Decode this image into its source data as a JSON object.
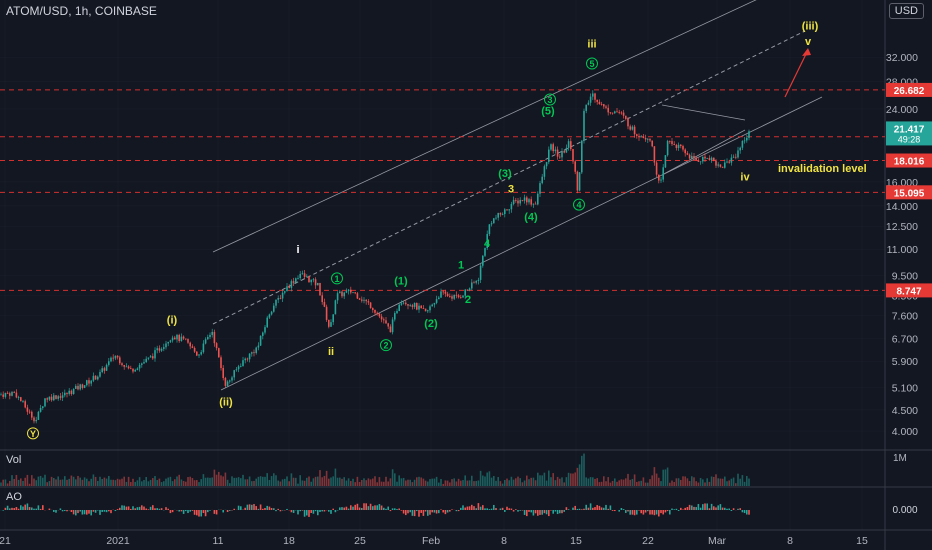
{
  "header": {
    "title": "ATOM/USD, 1h, COINBASE",
    "currency": "USD"
  },
  "panes": {
    "volume": "Vol",
    "ao": "AO"
  },
  "colors": {
    "bg": "#131722",
    "up": "#26a69a",
    "down": "#ef5350",
    "yellow": "#f0e442",
    "green": "#00c853",
    "red_level": "#d32f2f",
    "grid": "#2a2e39",
    "text": "#b2b5be"
  },
  "chart_data": {
    "type": "candlestick",
    "symbol": "ATOM/USD",
    "interval": "1h",
    "exchange": "COINBASE",
    "y_scale": "log",
    "ylim": [
      3.6,
      44
    ],
    "price_ticks": [
      "32.000",
      "28.000",
      "24.000",
      "16.000",
      "14.000",
      "12.500",
      "11.000",
      "9.500",
      "8.500",
      "7.600",
      "6.700",
      "5.900",
      "5.100",
      "4.500",
      "4.000"
    ],
    "x_ticks": [
      "21",
      "2021",
      "11",
      "18",
      "25",
      "Feb",
      "8",
      "15",
      "22",
      "Mar",
      "8",
      "15"
    ],
    "price_series": [
      {
        "t": 0,
        "p": 4.9
      },
      {
        "t": 15,
        "p": 4.95
      },
      {
        "t": 30,
        "p": 4.4
      },
      {
        "t": 36,
        "p": 4.25
      },
      {
        "t": 45,
        "p": 4.8
      },
      {
        "t": 65,
        "p": 4.9
      },
      {
        "t": 85,
        "p": 5.2
      },
      {
        "t": 100,
        "p": 5.5
      },
      {
        "t": 115,
        "p": 6.1
      },
      {
        "t": 130,
        "p": 5.6
      },
      {
        "t": 150,
        "p": 6.0
      },
      {
        "t": 172,
        "p": 6.8
      },
      {
        "t": 185,
        "p": 6.6
      },
      {
        "t": 198,
        "p": 6.1
      },
      {
        "t": 212,
        "p": 7.0
      },
      {
        "t": 220,
        "p": 5.8
      },
      {
        "t": 226,
        "p": 5.15
      },
      {
        "t": 240,
        "p": 5.8
      },
      {
        "t": 258,
        "p": 6.4
      },
      {
        "t": 270,
        "p": 7.8
      },
      {
        "t": 285,
        "p": 8.8
      },
      {
        "t": 300,
        "p": 9.6
      },
      {
        "t": 318,
        "p": 9.0
      },
      {
        "t": 330,
        "p": 7.0
      },
      {
        "t": 336,
        "p": 8.5
      },
      {
        "t": 352,
        "p": 8.7
      },
      {
        "t": 372,
        "p": 8.0
      },
      {
        "t": 390,
        "p": 7.0
      },
      {
        "t": 400,
        "p": 8.3
      },
      {
        "t": 412,
        "p": 8.1
      },
      {
        "t": 426,
        "p": 7.7
      },
      {
        "t": 440,
        "p": 8.6
      },
      {
        "t": 458,
        "p": 8.4
      },
      {
        "t": 470,
        "p": 8.9
      },
      {
        "t": 478,
        "p": 9.3
      },
      {
        "t": 490,
        "p": 12.8
      },
      {
        "t": 505,
        "p": 13.6
      },
      {
        "t": 512,
        "p": 14.2
      },
      {
        "t": 525,
        "p": 14.6
      },
      {
        "t": 535,
        "p": 14.1
      },
      {
        "t": 550,
        "p": 19.5
      },
      {
        "t": 560,
        "p": 18.4
      },
      {
        "t": 570,
        "p": 20.0
      },
      {
        "t": 578,
        "p": 15.2
      },
      {
        "t": 584,
        "p": 23.5
      },
      {
        "t": 592,
        "p": 26.2
      },
      {
        "t": 605,
        "p": 24.0
      },
      {
        "t": 620,
        "p": 23.5
      },
      {
        "t": 635,
        "p": 21.0
      },
      {
        "t": 650,
        "p": 20.4
      },
      {
        "t": 660,
        "p": 15.4
      },
      {
        "t": 668,
        "p": 20.2
      },
      {
        "t": 680,
        "p": 19.3
      },
      {
        "t": 695,
        "p": 18.0
      },
      {
        "t": 710,
        "p": 18.4
      },
      {
        "t": 720,
        "p": 17.3
      },
      {
        "t": 735,
        "p": 18.5
      },
      {
        "t": 750,
        "p": 21.4
      }
    ],
    "price_levels": [
      {
        "value": 26.682,
        "label": "26.682"
      },
      {
        "value": 20.568,
        "label": "20.568"
      },
      {
        "value": 18.016,
        "label": "18.016"
      },
      {
        "value": 15.095,
        "label": "15.095"
      },
      {
        "value": 8.747,
        "label": "8.747"
      }
    ],
    "last_price": {
      "value": 21.417,
      "label": "21.417",
      "countdown": "49:28"
    },
    "wave_labels": [
      {
        "text": "Y",
        "t": 33,
        "p": 3.95,
        "style": "yellow-circle"
      },
      {
        "text": "(i)",
        "t": 172,
        "p": 7.45,
        "style": "yellow"
      },
      {
        "text": "(ii)",
        "t": 226,
        "p": 4.72,
        "style": "yellow"
      },
      {
        "text": "i",
        "t": 298,
        "p": 11.0,
        "style": "white"
      },
      {
        "text": "ii",
        "t": 331,
        "p": 6.25,
        "style": "yellow"
      },
      {
        "text": "1",
        "t": 337,
        "p": 9.35,
        "style": "green-circle"
      },
      {
        "text": "2",
        "t": 386,
        "p": 6.45,
        "style": "green-circle"
      },
      {
        "text": "(1)",
        "t": 401,
        "p": 9.25,
        "style": "green"
      },
      {
        "text": "(2)",
        "t": 431,
        "p": 7.3,
        "style": "green"
      },
      {
        "text": "1",
        "t": 461,
        "p": 10.1,
        "style": "green"
      },
      {
        "text": "2",
        "t": 468,
        "p": 8.35,
        "style": "green"
      },
      {
        "text": "3",
        "t": 511,
        "p": 15.4,
        "style": "yellow"
      },
      {
        "text": "4",
        "t": 487,
        "p": 11.4,
        "style": "green"
      },
      {
        "text": "(3)",
        "t": 505,
        "p": 16.8,
        "style": "green"
      },
      {
        "text": "(4)",
        "t": 531,
        "p": 13.2,
        "style": "green"
      },
      {
        "text": "3",
        "t": 550,
        "p": 25.3,
        "style": "green-circle"
      },
      {
        "text": "(5)",
        "t": 548,
        "p": 23.8,
        "style": "green"
      },
      {
        "text": "iii",
        "t": 592,
        "p": 34.5,
        "style": "yellow"
      },
      {
        "text": "5",
        "t": 592,
        "p": 30.9,
        "style": "green-circle"
      },
      {
        "text": "4",
        "t": 579,
        "p": 14.1,
        "style": "green-circle"
      },
      {
        "text": "iv",
        "t": 745,
        "p": 16.5,
        "style": "yellow"
      },
      {
        "text": "(iii)",
        "t": 810,
        "p": 38.2,
        "style": "yellow"
      },
      {
        "text": "v",
        "t": 808,
        "p": 35.0,
        "style": "yellow"
      }
    ],
    "annotations": [
      {
        "text": "invalidation level",
        "t": 778,
        "p": 17.3
      }
    ],
    "indicators": [
      {
        "name": "Vol",
        "scale_label": "1M"
      },
      {
        "name": "AO",
        "scale_label": "0.000"
      }
    ]
  }
}
